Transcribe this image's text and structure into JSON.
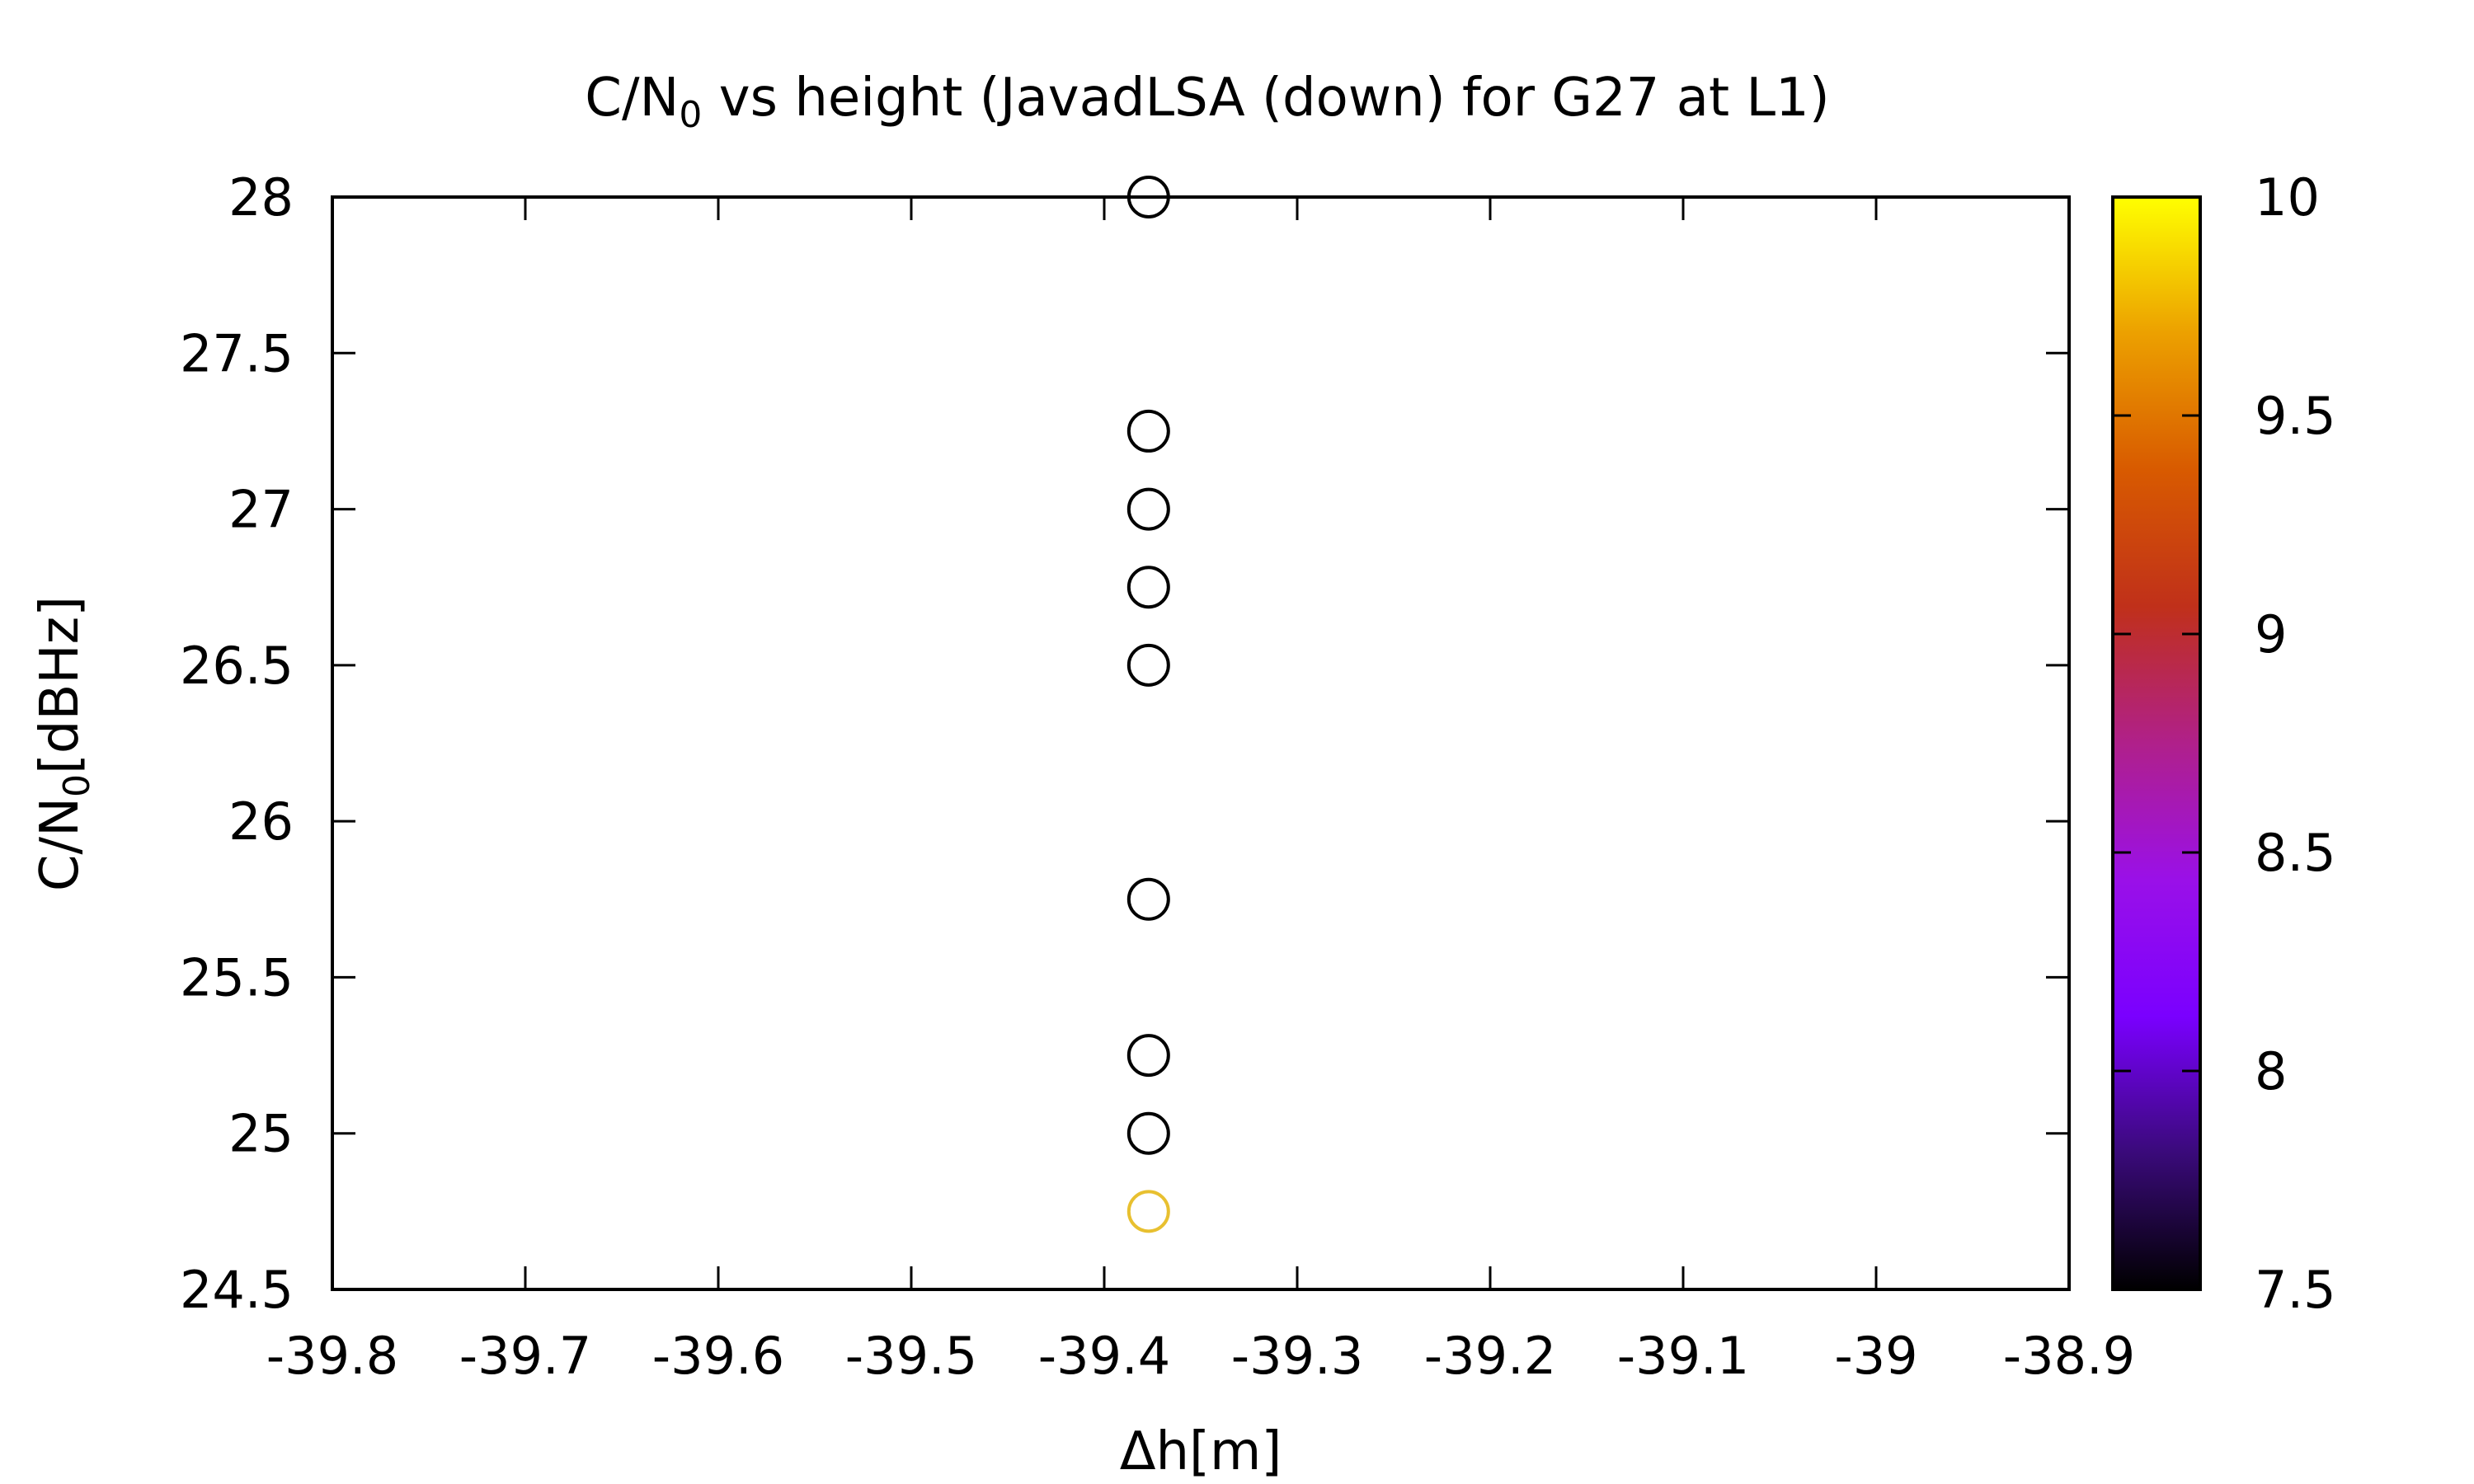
{
  "chart_data": {
    "type": "scatter",
    "title": {
      "main": "C/N",
      "sub": "0",
      "rest": " vs height (JavadLSA (down) for G27 at L1)"
    },
    "xlabel": "Δh[m]",
    "ylabel": {
      "main": "C/N",
      "sub": "0",
      "rest": "[dBHz]"
    },
    "xlim": [
      -39.8,
      -38.9
    ],
    "ylim": [
      24.5,
      28
    ],
    "xticks": [
      "-39.8",
      "-39.7",
      "-39.6",
      "-39.5",
      "-39.4",
      "-39.3",
      "-39.2",
      "-39.1",
      "-39",
      "-38.9"
    ],
    "yticks": [
      "24.5",
      "25",
      "25.5",
      "26",
      "26.5",
      "27",
      "27.5",
      "28"
    ],
    "colorbar": {
      "range": [
        7.5,
        10
      ],
      "ticks": [
        "7.5",
        "8",
        "8.5",
        "9",
        "9.5",
        "10"
      ],
      "palette": [
        "#000000",
        "#3a0a7a",
        "#7a00ff",
        "#9a10e8",
        "#b0208a",
        "#c0301a",
        "#d85a00",
        "#eca000",
        "#ffff00"
      ]
    },
    "grid": false,
    "points": [
      {
        "x": -39.377,
        "y": 28.0,
        "c": null
      },
      {
        "x": -39.377,
        "y": 27.25,
        "c": null
      },
      {
        "x": -39.377,
        "y": 27.0,
        "c": null
      },
      {
        "x": -39.377,
        "y": 26.75,
        "c": null
      },
      {
        "x": -39.377,
        "y": 26.5,
        "c": null
      },
      {
        "x": -39.377,
        "y": 25.75,
        "c": null
      },
      {
        "x": -39.377,
        "y": 25.25,
        "c": null
      },
      {
        "x": -39.377,
        "y": 25.0,
        "c": null
      },
      {
        "x": -39.377,
        "y": 24.75,
        "c": 9.8
      }
    ]
  }
}
